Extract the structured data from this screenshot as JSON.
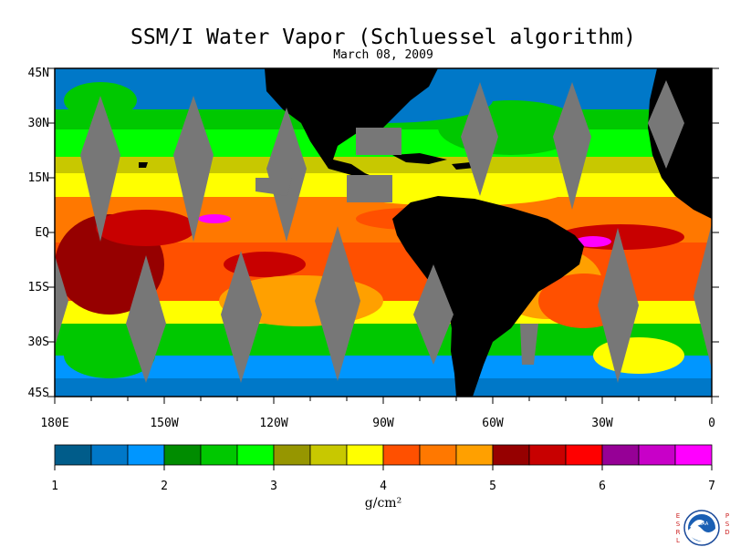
{
  "title": "SSM/I Water Vapor (Schluessel algorithm)",
  "subtitle": "March 08, 2009",
  "lat_labels": [
    "45N",
    "30N",
    "15N",
    "EQ",
    "15S",
    "30S",
    "45S"
  ],
  "lon_labels": [
    "180E",
    "150W",
    "120W",
    "90W",
    "60W",
    "30W",
    "0"
  ],
  "colorbar": {
    "ticks": [
      "1",
      "2",
      "3",
      "4",
      "5",
      "6",
      "7"
    ],
    "units": "g/cm²",
    "colors": [
      "#005c8a",
      "#0078c8",
      "#0096ff",
      "#008c00",
      "#00c800",
      "#00ff00",
      "#969600",
      "#c8c800",
      "#ffff00",
      "#ff5000",
      "#ff7800",
      "#ffa000",
      "#960000",
      "#c80000",
      "#ff0000",
      "#960096",
      "#c800c8",
      "#ff00ff"
    ]
  },
  "logo": {
    "left_text": "ESRL",
    "right_text": "PSD",
    "name": "noaa-logo"
  }
}
